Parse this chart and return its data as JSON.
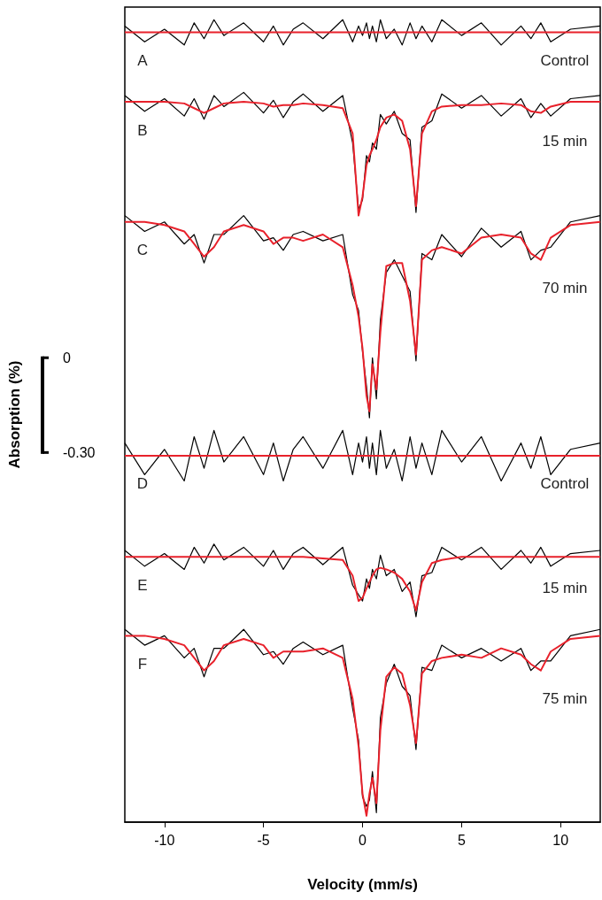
{
  "chart_data": {
    "type": "line",
    "xlabel": "Velocity (mm/s)",
    "ylabel": "Absorption (%)",
    "xlim": [
      -12,
      12
    ],
    "xticks": [
      -10,
      -5,
      0,
      5,
      10
    ],
    "ylim": [
      -1.47,
      1.11
    ],
    "yticks": [
      {
        "value": 0,
        "label": "0"
      },
      {
        "value": -0.3,
        "label": "-0.30"
      }
    ],
    "marker": "none",
    "x": [
      -12,
      -11,
      -10,
      -9,
      -8.5,
      -8,
      -7.5,
      -7,
      -6,
      -5,
      -4.5,
      -4,
      -3.5,
      -3,
      -2,
      -1,
      -0.5,
      -0.2,
      0,
      0.2,
      0.35,
      0.5,
      0.7,
      0.9,
      1.2,
      1.6,
      2,
      2.4,
      2.7,
      3,
      3.5,
      4,
      5,
      6,
      7,
      8,
      8.5,
      9,
      9.5,
      10.5,
      12
    ],
    "series": [
      {
        "color": "#000000",
        "values": [
          1.05,
          1.0,
          1.04,
          0.99,
          1.06,
          1.01,
          1.07,
          1.02,
          1.06,
          1.0,
          1.05,
          0.99,
          1.04,
          1.06,
          1.01,
          1.07,
          1.0,
          1.05,
          1.02,
          1.06,
          1.01,
          1.05,
          1.0,
          1.07,
          1.01,
          1.04,
          0.99,
          1.06,
          1.01,
          1.05,
          1.0,
          1.07,
          1.02,
          1.06,
          0.99,
          1.05,
          1.01,
          1.06,
          1.0,
          1.04,
          1.05
        ]
      },
      {
        "color": "#e8212b",
        "values": [
          1.03,
          1.03,
          1.03,
          1.03,
          1.03,
          1.03,
          1.03,
          1.03,
          1.03,
          1.03,
          1.03,
          1.03,
          1.03,
          1.03,
          1.03,
          1.03,
          1.03,
          1.03,
          1.03,
          1.03,
          1.03,
          1.03,
          1.03,
          1.03,
          1.03,
          1.03,
          1.03,
          1.03,
          1.03,
          1.03,
          1.03,
          1.03,
          1.03,
          1.03,
          1.03,
          1.03,
          1.03,
          1.03,
          1.03,
          1.03,
          1.03
        ]
      },
      {
        "color": "#000000",
        "values": [
          0.83,
          0.78,
          0.82,
          0.765,
          0.82,
          0.755,
          0.83,
          0.795,
          0.84,
          0.775,
          0.815,
          0.76,
          0.81,
          0.835,
          0.78,
          0.83,
          0.68,
          0.47,
          0.5,
          0.64,
          0.62,
          0.68,
          0.66,
          0.77,
          0.74,
          0.78,
          0.71,
          0.69,
          0.46,
          0.73,
          0.75,
          0.835,
          0.79,
          0.83,
          0.765,
          0.82,
          0.76,
          0.805,
          0.765,
          0.82,
          0.83
        ]
      },
      {
        "color": "#e8212b",
        "values": [
          0.81,
          0.81,
          0.81,
          0.805,
          0.79,
          0.775,
          0.79,
          0.805,
          0.81,
          0.805,
          0.795,
          0.8,
          0.8,
          0.805,
          0.8,
          0.79,
          0.71,
          0.45,
          0.51,
          0.61,
          0.64,
          0.66,
          0.69,
          0.73,
          0.76,
          0.77,
          0.75,
          0.66,
          0.48,
          0.71,
          0.78,
          0.795,
          0.8,
          0.8,
          0.805,
          0.8,
          0.78,
          0.775,
          0.795,
          0.81,
          0.81
        ]
      },
      {
        "color": "#000000",
        "values": [
          0.45,
          0.4,
          0.43,
          0.36,
          0.39,
          0.3,
          0.39,
          0.39,
          0.45,
          0.37,
          0.38,
          0.34,
          0.39,
          0.4,
          0.37,
          0.39,
          0.2,
          0.15,
          0.02,
          -0.09,
          -0.19,
          0.0,
          -0.13,
          0.12,
          0.27,
          0.31,
          0.26,
          0.21,
          -0.01,
          0.33,
          0.31,
          0.39,
          0.32,
          0.41,
          0.35,
          0.4,
          0.31,
          0.34,
          0.35,
          0.43,
          0.45
        ]
      },
      {
        "color": "#e8212b",
        "values": [
          0.43,
          0.43,
          0.42,
          0.4,
          0.36,
          0.32,
          0.35,
          0.4,
          0.42,
          0.4,
          0.36,
          0.38,
          0.38,
          0.37,
          0.39,
          0.35,
          0.23,
          0.13,
          0.03,
          -0.12,
          -0.17,
          -0.02,
          -0.1,
          0.08,
          0.29,
          0.3,
          0.3,
          0.18,
          0.01,
          0.31,
          0.34,
          0.35,
          0.33,
          0.38,
          0.39,
          0.38,
          0.33,
          0.31,
          0.38,
          0.42,
          0.43
        ]
      },
      {
        "color": "#000000",
        "values": [
          -0.27,
          -0.37,
          -0.29,
          -0.39,
          -0.25,
          -0.35,
          -0.23,
          -0.33,
          -0.25,
          -0.37,
          -0.27,
          -0.39,
          -0.29,
          -0.25,
          -0.35,
          -0.23,
          -0.37,
          -0.27,
          -0.33,
          -0.25,
          -0.35,
          -0.27,
          -0.37,
          -0.23,
          -0.35,
          -0.29,
          -0.39,
          -0.25,
          -0.35,
          -0.27,
          -0.37,
          -0.23,
          -0.33,
          -0.25,
          -0.39,
          -0.27,
          -0.35,
          -0.25,
          -0.37,
          -0.29,
          -0.27
        ]
      },
      {
        "color": "#e8212b",
        "values": [
          -0.31,
          -0.31,
          -0.31,
          -0.31,
          -0.31,
          -0.31,
          -0.31,
          -0.31,
          -0.31,
          -0.31,
          -0.31,
          -0.31,
          -0.31,
          -0.31,
          -0.31,
          -0.31,
          -0.31,
          -0.31,
          -0.31,
          -0.31,
          -0.31,
          -0.31,
          -0.31,
          -0.31,
          -0.31,
          -0.31,
          -0.31,
          -0.31,
          -0.31,
          -0.31,
          -0.31,
          -0.31,
          -0.31,
          -0.31,
          -0.31,
          -0.31,
          -0.31,
          -0.31,
          -0.31,
          -0.31,
          -0.31
        ]
      },
      {
        "color": "#000000",
        "values": [
          -0.61,
          -0.66,
          -0.62,
          -0.67,
          -0.6,
          -0.65,
          -0.59,
          -0.64,
          -0.6,
          -0.66,
          -0.61,
          -0.67,
          -0.62,
          -0.6,
          -0.655,
          -0.6,
          -0.72,
          -0.75,
          -0.77,
          -0.7,
          -0.73,
          -0.67,
          -0.7,
          -0.625,
          -0.69,
          -0.67,
          -0.74,
          -0.71,
          -0.82,
          -0.69,
          -0.68,
          -0.6,
          -0.64,
          -0.6,
          -0.67,
          -0.61,
          -0.65,
          -0.6,
          -0.66,
          -0.62,
          -0.61
        ]
      },
      {
        "color": "#e8212b",
        "values": [
          -0.63,
          -0.63,
          -0.63,
          -0.63,
          -0.63,
          -0.63,
          -0.63,
          -0.63,
          -0.63,
          -0.63,
          -0.63,
          -0.63,
          -0.63,
          -0.63,
          -0.635,
          -0.64,
          -0.69,
          -0.77,
          -0.76,
          -0.73,
          -0.71,
          -0.69,
          -0.67,
          -0.665,
          -0.67,
          -0.68,
          -0.7,
          -0.74,
          -0.8,
          -0.71,
          -0.65,
          -0.64,
          -0.63,
          -0.63,
          -0.63,
          -0.63,
          -0.63,
          -0.63,
          -0.63,
          -0.63,
          -0.63
        ]
      },
      {
        "color": "#000000",
        "values": [
          -0.86,
          -0.91,
          -0.88,
          -0.95,
          -0.92,
          -1.01,
          -0.92,
          -0.92,
          -0.86,
          -0.94,
          -0.93,
          -0.97,
          -0.92,
          -0.9,
          -0.94,
          -0.91,
          -1.11,
          -1.21,
          -1.39,
          -1.42,
          -1.4,
          -1.31,
          -1.44,
          -1.14,
          -1.03,
          -0.97,
          -1.04,
          -1.07,
          -1.24,
          -0.98,
          -0.99,
          -0.91,
          -0.95,
          -0.92,
          -0.96,
          -0.92,
          -0.99,
          -0.96,
          -0.96,
          -0.88,
          -0.86
        ]
      },
      {
        "color": "#e8212b",
        "values": [
          -0.88,
          -0.88,
          -0.89,
          -0.91,
          -0.95,
          -0.99,
          -0.96,
          -0.91,
          -0.89,
          -0.91,
          -0.95,
          -0.93,
          -0.93,
          -0.93,
          -0.92,
          -0.95,
          -1.08,
          -1.23,
          -1.38,
          -1.45,
          -1.38,
          -1.33,
          -1.41,
          -1.18,
          -1.01,
          -0.98,
          -1.0,
          -1.1,
          -1.22,
          -1.0,
          -0.96,
          -0.95,
          -0.94,
          -0.95,
          -0.92,
          -0.94,
          -0.97,
          -0.99,
          -0.93,
          -0.89,
          -0.88
        ]
      }
    ],
    "annotations": [
      "A",
      "Control",
      "B",
      "15 min",
      "C",
      "70 min",
      "D",
      "Control",
      "E",
      "15 min",
      "F",
      "75 min"
    ]
  }
}
